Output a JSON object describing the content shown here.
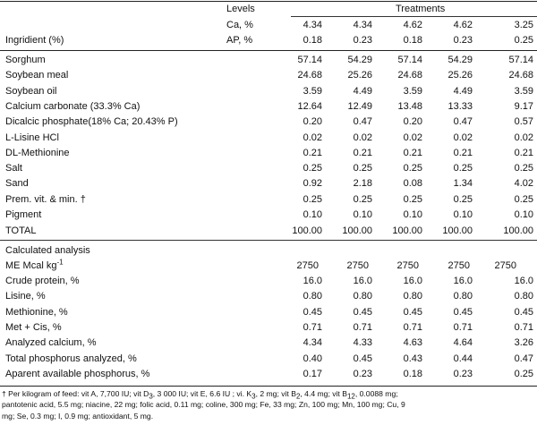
{
  "header": {
    "levels_label": "Levels",
    "treatments_label": "Treatments",
    "ingredient_label": "Ingridient (%)",
    "ca_label": "Ca, %",
    "ap_label": "AP, %",
    "ca_values": [
      "4.34",
      "4.34",
      "4.62",
      "4.62",
      "3.25"
    ],
    "ap_values": [
      "0.18",
      "0.23",
      "0.18",
      "0.23",
      "0.25"
    ]
  },
  "ingredients": [
    {
      "name": "Sorghum",
      "values": [
        "57.14",
        "54.29",
        "57.14",
        "54.29",
        "57.14"
      ]
    },
    {
      "name": "Soybean meal",
      "values": [
        "24.68",
        "25.26",
        "24.68",
        "25.26",
        "24.68"
      ]
    },
    {
      "name": "Soybean oil",
      "values": [
        "3.59",
        "4.49",
        "3.59",
        "4.49",
        "3.59"
      ]
    },
    {
      "name": "Calcium carbonate (33.3% Ca)",
      "values": [
        "12.64",
        "12.49",
        "13.48",
        "13.33",
        "9.17"
      ]
    },
    {
      "name": "Dicalcic phosphate(18% Ca; 20.43% P)",
      "values": [
        "0.20",
        "0.47",
        "0.20",
        "0.47",
        "0.57"
      ]
    },
    {
      "name": "L-Lisine HCl",
      "values": [
        "0.02",
        "0.02",
        "0.02",
        "0.02",
        "0.02"
      ]
    },
    {
      "name": "DL-Methionine",
      "values": [
        "0.21",
        "0.21",
        "0.21",
        "0.21",
        "0.21"
      ]
    },
    {
      "name": "Salt",
      "values": [
        "0.25",
        "0.25",
        "0.25",
        "0.25",
        "0.25"
      ]
    },
    {
      "name": "Sand",
      "values": [
        "0.92",
        "2.18",
        "0.08",
        "1.34",
        "4.02"
      ]
    },
    {
      "name": "Prem. vit. & min. †",
      "values": [
        "0.25",
        "0.25",
        "0.25",
        "0.25",
        "0.25"
      ]
    },
    {
      "name": "Pigment",
      "values": [
        "0.10",
        "0.10",
        "0.10",
        "0.10",
        "0.10"
      ]
    },
    {
      "name": "TOTAL",
      "values": [
        "100.00",
        "100.00",
        "100.00",
        "100.00",
        "100.00"
      ]
    }
  ],
  "analysis": {
    "title": "Calculated analysis",
    "me_label": "ME Mcal kg",
    "me_sup": "-1",
    "me_values": [
      "2750",
      "2750",
      "2750",
      "2750",
      "2750"
    ],
    "rows": [
      {
        "name": "Crude protein, %",
        "values": [
          "16.0",
          "16.0",
          "16.0",
          "16.0",
          "16.0"
        ]
      },
      {
        "name": "Lisine, %",
        "values": [
          "0.80",
          "0.80",
          "0.80",
          "0.80",
          "0.80"
        ]
      },
      {
        "name": "Methionine, %",
        "values": [
          "0.45",
          "0.45",
          "0.45",
          "0.45",
          "0.45"
        ]
      },
      {
        "name": "Met + Cis, %",
        "values": [
          "0.71",
          "0.71",
          "0.71",
          "0.71",
          "0.71"
        ]
      },
      {
        "name": "Analyzed calcium, %",
        "values": [
          "4.34",
          "4.33",
          "4.63",
          "4.64",
          "3.26"
        ]
      },
      {
        "name": "Total phosphorus analyzed, %",
        "values": [
          "0.40",
          "0.45",
          "0.43",
          "0.44",
          "0.47"
        ]
      },
      {
        "name": "Aparent available phosphorus, %",
        "values": [
          "0.17",
          "0.23",
          "0.18",
          "0.23",
          "0.25"
        ]
      }
    ]
  },
  "footnote": {
    "p1": "† Per kilogram of feed: vit A, 7,700 IU; vit D",
    "s1": "3",
    "p2": ", 3 000 IU; vit E, 6.6 IU ; vi. K",
    "s2": "3",
    "p3": ", 2 mg; vit B",
    "s3": "2",
    "p4": ", 4.4 mg; vit B",
    "s4": "12",
    "p5": ", 0.0088 mg;",
    "line2": "pantotenic acid, 5.5 mg; niacine, 22 mg; folic acid, 0.11 mg; coline, 300 mg; Fe, 33 mg; Zn, 100 mg; Mn, 100 mg; Cu, 9",
    "line3": "mg; Se, 0.3 mg; I, 0.9 mg; antioxidant, 5 mg."
  }
}
